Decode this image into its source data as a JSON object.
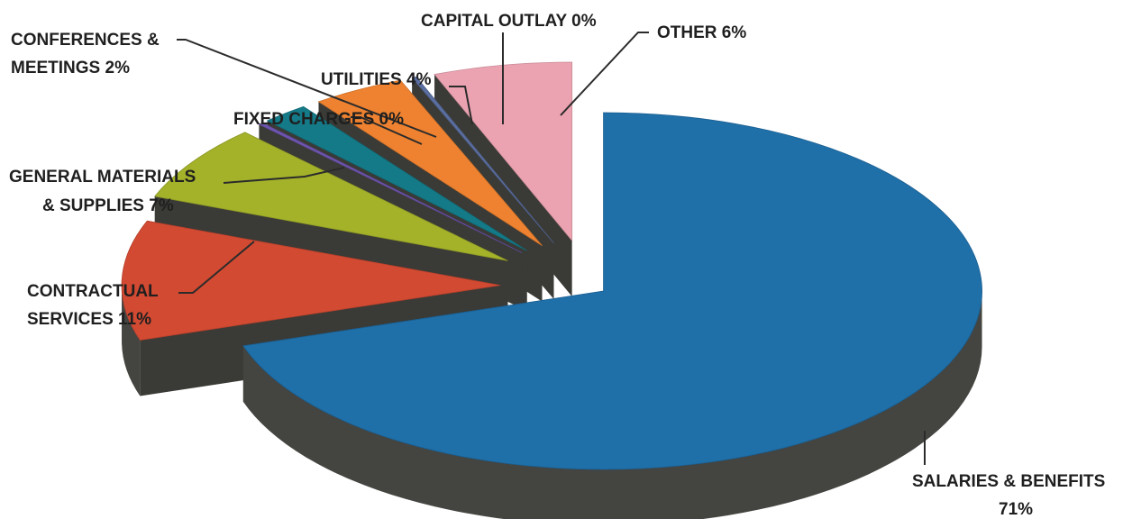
{
  "chart_data": {
    "type": "pie",
    "title": "",
    "slices": [
      {
        "name": "SALARIES & BENEFITS",
        "value": 71,
        "label": "71%",
        "color": "#1f6fa8"
      },
      {
        "name": "CONTRACTUAL SERVICES",
        "value": 11,
        "label": "11%",
        "color": "#d24a32"
      },
      {
        "name": "GENERAL MATERIALS & SUPPLIES",
        "value": 7,
        "label": "7%",
        "color": "#a4b22a"
      },
      {
        "name": "FIXED CHARGES",
        "value": 0,
        "label": "0%",
        "color": "#6e55b0"
      },
      {
        "name": "CONFERENCES & MEETINGS",
        "value": 2,
        "label": "2%",
        "color": "#147a88"
      },
      {
        "name": "UTILITIES",
        "value": 4,
        "label": "4%",
        "color": "#ee8230"
      },
      {
        "name": "CAPITAL OUTLAY",
        "value": 0,
        "label": "0%",
        "color": "#5a6ea0"
      },
      {
        "name": "OTHER",
        "value": 6,
        "label": "6%",
        "color": "#eba3b1"
      }
    ],
    "labels": {
      "salaries_line1": "SALARIES & BENEFITS",
      "salaries_line2": "71%",
      "contractual_line1": "CONTRACTUAL",
      "contractual_line2": "SERVICES 11%",
      "general_line1": "GENERAL MATERIALS",
      "general_line2": "& SUPPLIES 7%",
      "fixed": "FIXED CHARGES 0%",
      "conferences_line1": "CONFERENCES &",
      "conferences_line2": "MEETINGS 2%",
      "utilities": "UTILITIES 4%",
      "capital": "CAPITAL OUTLAY 0%",
      "other": "OTHER 6%"
    },
    "legend": "none",
    "style": "3d-exploded"
  }
}
